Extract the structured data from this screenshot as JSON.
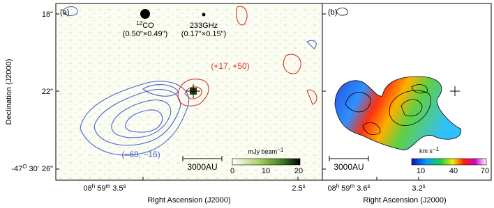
{
  "panel_a": {
    "label": "(a)",
    "y_axis_label": "Declination (J2000)",
    "x_axis_label": "Right Ascension (J2000)",
    "y_ticks": [
      "18\"",
      "22\"",
      "26\""
    ],
    "dec_prefix": {
      "deg": "-47",
      "deg_mark": "O",
      "min": " 30'"
    },
    "x_ticks": [
      {
        "h": "08",
        "h_unit": "h",
        "m": " 59",
        "m_unit": "m",
        "s": " 3.5",
        "s_unit": "s"
      },
      {
        "s": "2.5",
        "s_unit": "s"
      }
    ],
    "beams": [
      {
        "name_sup": "12",
        "name": "CO",
        "size": "(0.50\"×0.49\")"
      },
      {
        "name": "233GHz",
        "size": "(0.17\"×0.15\")"
      }
    ],
    "red_velocity": "(+17, +50)",
    "blue_velocity": "(−68, −16)",
    "scale_bar": "3000AU",
    "colorbar": {
      "unit": "mJy beam",
      "unit_sup": "−1",
      "ticks": [
        "0",
        "10",
        "20"
      ]
    }
  },
  "panel_b": {
    "label": "(b)",
    "x_axis_label": "Right Ascension (J2000)",
    "x_ticks": [
      {
        "h": "08",
        "h_unit": "h",
        "m": " 59",
        "m_unit": "m",
        "s": " 3.6",
        "s_unit": "s"
      },
      {
        "s": "3.2",
        "s_unit": "s"
      }
    ],
    "scale_bar": "3000AU",
    "colorbar": {
      "unit": "km s",
      "unit_sup": "−1",
      "ticks": [
        "10",
        "40",
        "70"
      ]
    }
  }
}
